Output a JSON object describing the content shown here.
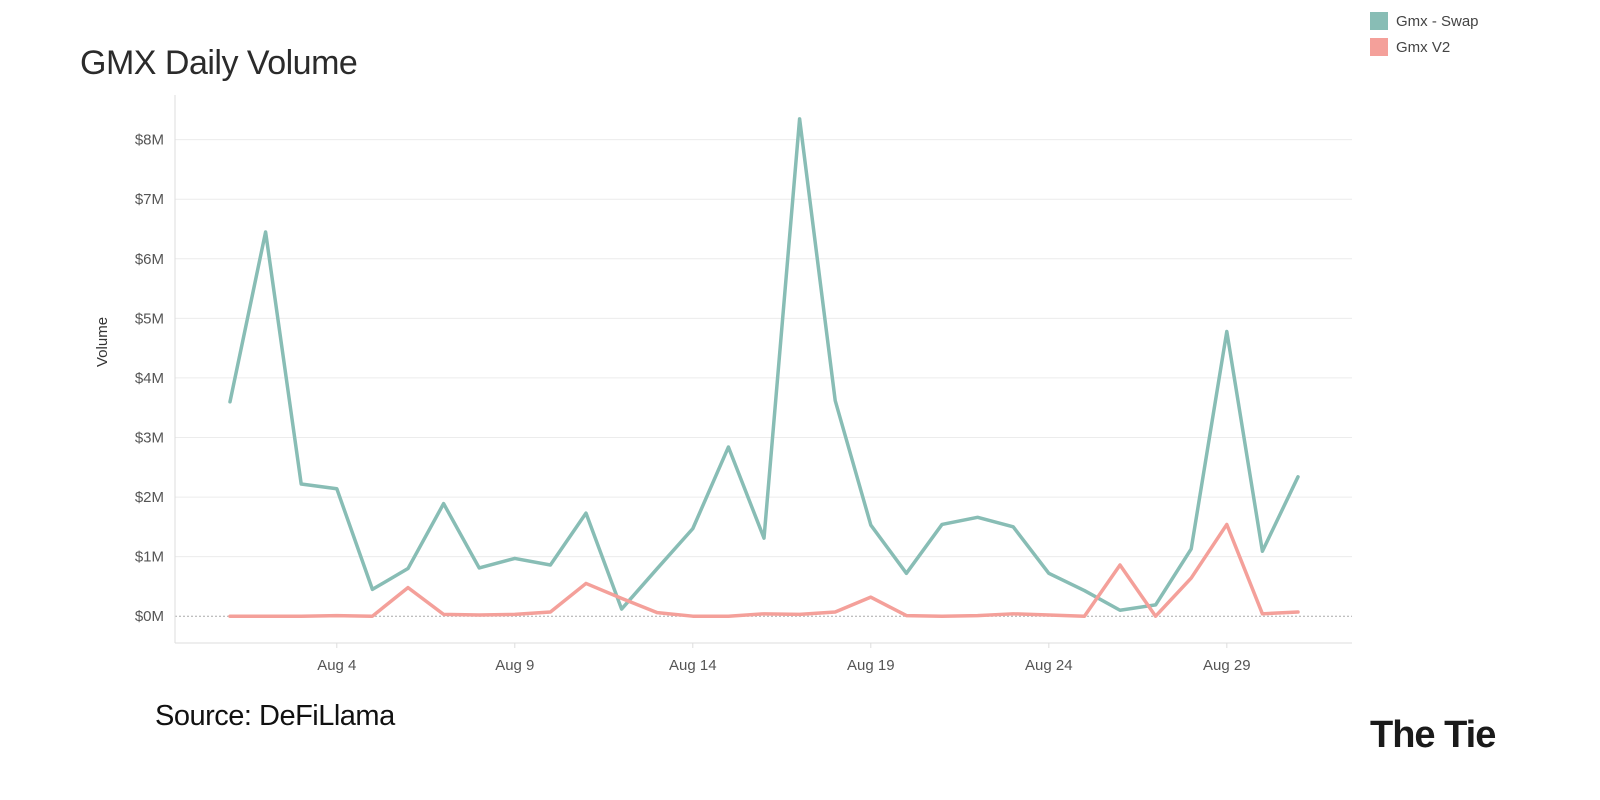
{
  "header": {
    "title": "GMX Daily Volume"
  },
  "source_label": "Source: DeFiLlama",
  "logo_text": "The Tie",
  "colors": {
    "swap": "#88bdb5",
    "v2": "#f4a09a",
    "grid": "#ececec",
    "axis": "#dddddd",
    "zero": "#aaaaaa"
  },
  "chart_data": {
    "type": "line",
    "title": "GMX Daily Volume",
    "xlabel": "",
    "ylabel": "Volume",
    "x": [
      "2023-08-01",
      "2023-08-02",
      "2023-08-03",
      "2023-08-04",
      "2023-08-05",
      "2023-08-06",
      "2023-08-07",
      "2023-08-08",
      "2023-08-09",
      "2023-08-10",
      "2023-08-11",
      "2023-08-12",
      "2023-08-13",
      "2023-08-14",
      "2023-08-15",
      "2023-08-16",
      "2023-08-17",
      "2023-08-18",
      "2023-08-19",
      "2023-08-20",
      "2023-08-21",
      "2023-08-22",
      "2023-08-23",
      "2023-08-24",
      "2023-08-25",
      "2023-08-26",
      "2023-08-27",
      "2023-08-28",
      "2023-08-29",
      "2023-08-30",
      "2023-08-31"
    ],
    "x_ticks": [
      "Aug 4",
      "Aug 9",
      "Aug 14",
      "Aug 19",
      "Aug 24",
      "Aug 29"
    ],
    "x_tick_dates": [
      "2023-08-04",
      "2023-08-09",
      "2023-08-14",
      "2023-08-19",
      "2023-08-24",
      "2023-08-29"
    ],
    "y_ticks": [
      "$0M",
      "$1M",
      "$2M",
      "$3M",
      "$4M",
      "$5M",
      "$6M",
      "$7M",
      "$8M"
    ],
    "ylim": [
      -0.45,
      8.75
    ],
    "unit": "$M",
    "grid": true,
    "legend_position": "top-right",
    "series": [
      {
        "name": "Gmx - Swap",
        "color": "#88bdb5",
        "values": [
          3.6,
          6.45,
          2.22,
          2.14,
          0.45,
          0.8,
          1.89,
          0.81,
          0.97,
          0.86,
          1.73,
          0.12,
          0.8,
          1.47,
          2.84,
          1.31,
          8.35,
          3.62,
          1.53,
          0.72,
          1.54,
          1.66,
          1.5,
          0.72,
          0.43,
          0.1,
          0.19,
          1.13,
          4.78,
          1.09,
          2.34
        ]
      },
      {
        "name": "Gmx V2",
        "color": "#f4a09a",
        "values": [
          0.0,
          0.0,
          0.0,
          0.01,
          0.0,
          0.48,
          0.03,
          0.02,
          0.03,
          0.07,
          0.55,
          0.3,
          0.06,
          0.0,
          0.0,
          0.04,
          0.03,
          0.07,
          0.32,
          0.01,
          0.0,
          0.01,
          0.04,
          0.02,
          0.0,
          0.86,
          0.0,
          0.64,
          1.54,
          0.04,
          0.07
        ]
      }
    ]
  }
}
